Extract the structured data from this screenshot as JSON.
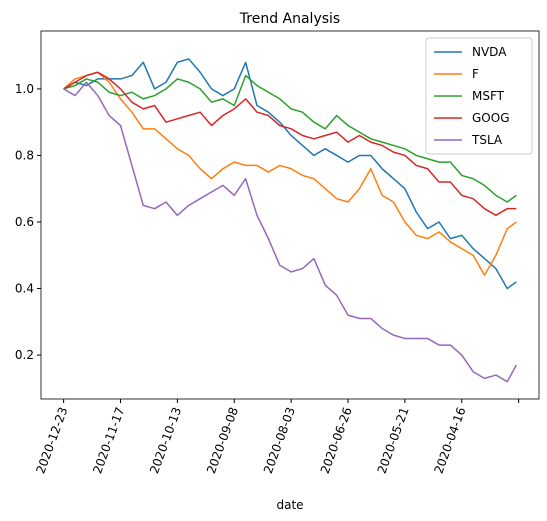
{
  "chart_data": {
    "type": "line",
    "title": "Trend Analysis",
    "x_label": "date",
    "x": [
      0,
      5,
      10,
      15,
      20,
      25,
      30,
      35,
      40,
      45,
      50,
      55,
      60,
      65,
      70,
      75,
      80,
      85,
      90,
      95,
      100,
      105,
      110,
      115,
      120,
      125,
      130,
      135,
      140,
      145,
      150,
      155,
      160,
      165,
      170,
      175,
      180,
      185,
      190,
      195,
      199
    ],
    "series": [
      {
        "name": "NVDA",
        "color": "#1f77b4",
        "values": [
          1.0,
          1.02,
          1.01,
          1.03,
          1.03,
          1.03,
          1.04,
          1.08,
          1.0,
          1.02,
          1.08,
          1.09,
          1.05,
          1.0,
          0.98,
          1.0,
          1.08,
          0.95,
          0.93,
          0.9,
          0.86,
          0.83,
          0.8,
          0.82,
          0.8,
          0.78,
          0.8,
          0.8,
          0.76,
          0.73,
          0.7,
          0.63,
          0.58,
          0.6,
          0.55,
          0.56,
          0.52,
          0.49,
          0.46,
          0.4,
          0.42
        ]
      },
      {
        "name": "F",
        "color": "#ff7f0e",
        "values": [
          1.0,
          1.03,
          1.04,
          1.05,
          1.02,
          0.97,
          0.93,
          0.88,
          0.88,
          0.85,
          0.82,
          0.8,
          0.76,
          0.73,
          0.76,
          0.78,
          0.77,
          0.77,
          0.75,
          0.77,
          0.76,
          0.74,
          0.73,
          0.7,
          0.67,
          0.66,
          0.7,
          0.76,
          0.68,
          0.66,
          0.6,
          0.56,
          0.55,
          0.57,
          0.54,
          0.52,
          0.5,
          0.44,
          0.5,
          0.58,
          0.6
        ]
      },
      {
        "name": "MSFT",
        "color": "#2ca02c",
        "values": [
          1.0,
          1.01,
          1.03,
          1.02,
          0.99,
          0.98,
          0.99,
          0.97,
          0.98,
          1.0,
          1.03,
          1.02,
          1.0,
          0.96,
          0.97,
          0.95,
          1.04,
          1.01,
          0.99,
          0.97,
          0.94,
          0.93,
          0.9,
          0.88,
          0.92,
          0.89,
          0.87,
          0.85,
          0.84,
          0.83,
          0.82,
          0.8,
          0.79,
          0.78,
          0.78,
          0.74,
          0.73,
          0.71,
          0.68,
          0.66,
          0.68
        ]
      },
      {
        "name": "GOOG",
        "color": "#d62728",
        "values": [
          1.0,
          1.02,
          1.04,
          1.05,
          1.03,
          1.0,
          0.96,
          0.94,
          0.95,
          0.9,
          0.91,
          0.92,
          0.93,
          0.89,
          0.92,
          0.94,
          0.97,
          0.93,
          0.92,
          0.89,
          0.88,
          0.86,
          0.85,
          0.86,
          0.87,
          0.84,
          0.86,
          0.84,
          0.83,
          0.81,
          0.8,
          0.77,
          0.76,
          0.72,
          0.72,
          0.68,
          0.67,
          0.64,
          0.62,
          0.64,
          0.64
        ]
      },
      {
        "name": "TSLA",
        "color": "#9467bd",
        "values": [
          1.0,
          0.98,
          1.02,
          0.98,
          0.92,
          0.89,
          0.77,
          0.65,
          0.64,
          0.66,
          0.62,
          0.65,
          0.67,
          0.69,
          0.71,
          0.68,
          0.73,
          0.62,
          0.55,
          0.47,
          0.45,
          0.46,
          0.49,
          0.41,
          0.38,
          0.32,
          0.31,
          0.31,
          0.28,
          0.26,
          0.25,
          0.25,
          0.25,
          0.23,
          0.23,
          0.2,
          0.15,
          0.13,
          0.14,
          0.12,
          0.17
        ]
      }
    ],
    "xlim": [
      -9.95,
      208.95
    ],
    "xticks": [
      {
        "value": 0,
        "label": "2020-12-23"
      },
      {
        "value": 25,
        "label": "2020-11-17"
      },
      {
        "value": 50,
        "label": "2020-10-13"
      },
      {
        "value": 75,
        "label": "2020-09-08"
      },
      {
        "value": 100,
        "label": "2020-08-03"
      },
      {
        "value": 125,
        "label": "2020-06-26"
      },
      {
        "value": 150,
        "label": "2020-05-21"
      },
      {
        "value": 175,
        "label": "2020-04-16"
      },
      {
        "value": 200,
        "label": null
      }
    ],
    "ylim": [
      0.068,
      1.174
    ],
    "yticks": [
      {
        "value": 0.2,
        "label": "0.2"
      },
      {
        "value": 0.4,
        "label": "0.4"
      },
      {
        "value": 0.6,
        "label": "0.6"
      },
      {
        "value": 0.8,
        "label": "0.8"
      },
      {
        "value": 1.0,
        "label": "1.0"
      }
    ],
    "legend": "upper right"
  }
}
